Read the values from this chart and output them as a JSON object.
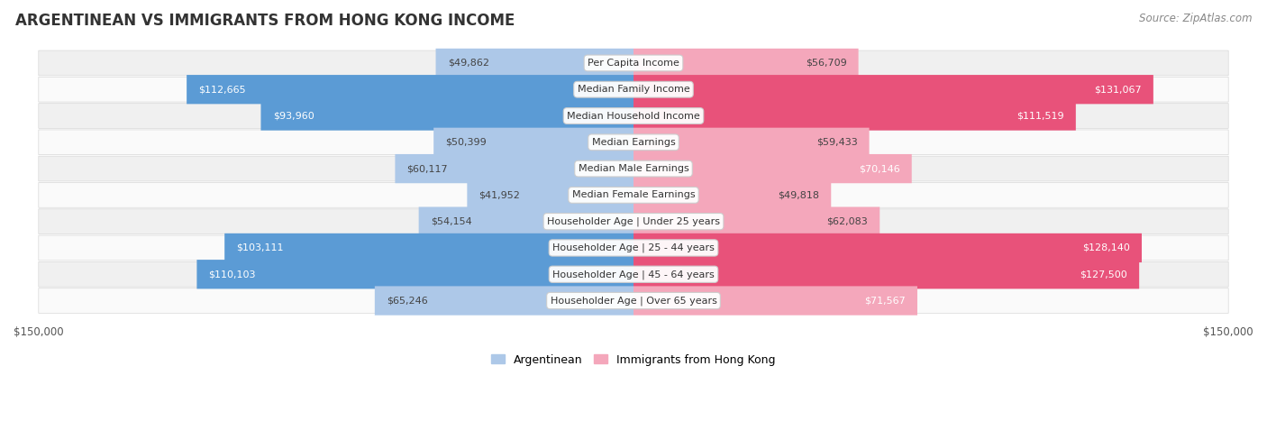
{
  "title": "ARGENTINEAN VS IMMIGRANTS FROM HONG KONG INCOME",
  "source": "Source: ZipAtlas.com",
  "categories": [
    "Per Capita Income",
    "Median Family Income",
    "Median Household Income",
    "Median Earnings",
    "Median Male Earnings",
    "Median Female Earnings",
    "Householder Age | Under 25 years",
    "Householder Age | 25 - 44 years",
    "Householder Age | 45 - 64 years",
    "Householder Age | Over 65 years"
  ],
  "argentinean": [
    49862,
    112665,
    93960,
    50399,
    60117,
    41952,
    54154,
    103111,
    110103,
    65246
  ],
  "hong_kong": [
    56709,
    131067,
    111519,
    59433,
    70146,
    49818,
    62083,
    128140,
    127500,
    71567
  ],
  "argentinean_labels": [
    "$49,862",
    "$112,665",
    "$93,960",
    "$50,399",
    "$60,117",
    "$41,952",
    "$54,154",
    "$103,111",
    "$110,103",
    "$65,246"
  ],
  "hong_kong_labels": [
    "$56,709",
    "$131,067",
    "$111,519",
    "$59,433",
    "$70,146",
    "$49,818",
    "$62,083",
    "$128,140",
    "$127,500",
    "$71,567"
  ],
  "max_value": 150000,
  "color_arg_light": "#adc8e8",
  "color_arg_dark": "#5b9bd5",
  "color_hk_light": "#f4a7bb",
  "color_hk_dark": "#e8527a",
  "arg_threshold": 80000,
  "hk_threshold": 80000,
  "bg_row_odd": "#f0f0f0",
  "bg_row_even": "#fafafa",
  "row_border": "#d8d8d8",
  "title_fontsize": 12,
  "source_fontsize": 8.5,
  "bar_label_fontsize": 8,
  "category_fontsize": 8,
  "axis_label_fontsize": 8.5
}
